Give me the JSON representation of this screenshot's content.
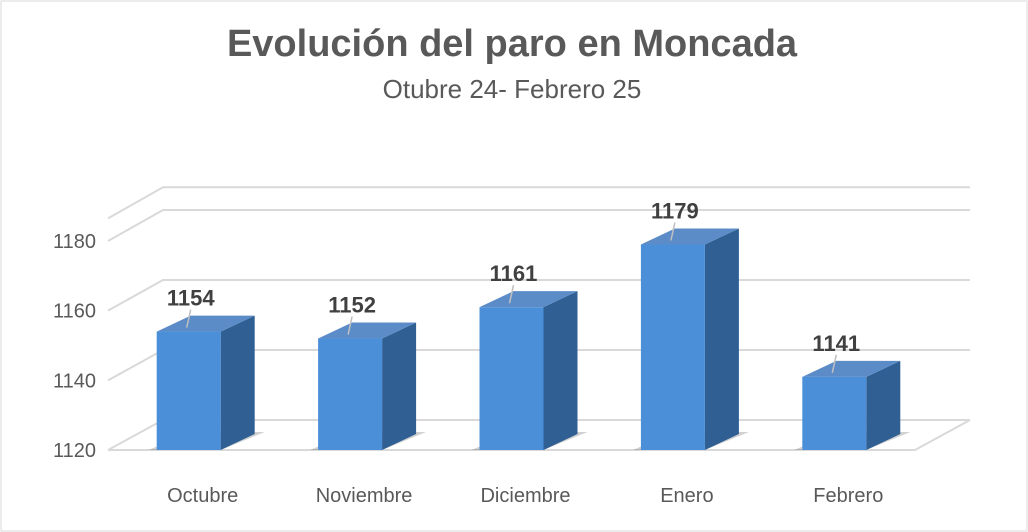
{
  "chart_data": {
    "type": "bar",
    "title": "Evolución del paro en Moncada",
    "subtitle": "Otubre 24- Febrero 25",
    "categories": [
      "Octubre",
      "Noviembre",
      "Diciembre",
      "Enero",
      "Febrero"
    ],
    "values": [
      1154,
      1152,
      1161,
      1179,
      1141
    ],
    "data_labels": [
      "1154",
      "1152",
      "1161",
      "1179",
      "1141"
    ],
    "yticks": [
      "1120",
      "1140",
      "1160",
      "1180"
    ],
    "ylim": [
      1120,
      1190
    ],
    "grid": true,
    "legend": "none",
    "colors": {
      "bar_front": "#4a8fd8",
      "bar_side": "#2f5f93",
      "bar_top": "#5c8cc8",
      "grid": "#d9d9d9",
      "text": "#595959",
      "label": "#404040"
    }
  }
}
